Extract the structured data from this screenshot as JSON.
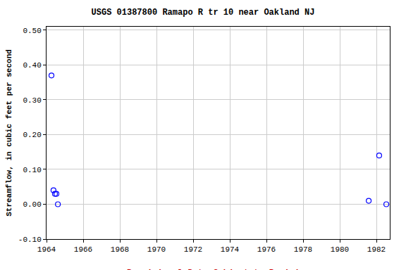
{
  "chart_data": {
    "type": "scatter",
    "title": "USGS 01387800 Ramapo R tr 10 near Oakland NJ",
    "y_label": "Streamflow, in cubic feet per second",
    "annotations": [
      "---- Provisional Data Subject to Revision ----"
    ],
    "x": [
      1964.27,
      1964.38,
      1964.46,
      1964.54,
      1964.62,
      1981.58,
      1982.15,
      1982.54
    ],
    "values": [
      0.37,
      0.04,
      0.03,
      0.03,
      0.0,
      0.01,
      0.14,
      0.0
    ],
    "color": "#0000ff",
    "marker": "circle-open",
    "xlim": [
      1964,
      1982.73
    ],
    "xticks": [
      1964,
      1966,
      1968,
      1970,
      1972,
      1974,
      1976,
      1978,
      1980,
      1982
    ],
    "ylim": [
      -0.1,
      0.51
    ],
    "yticks": [
      {
        "value": -0.1,
        "label": "-0.10"
      },
      {
        "value": 0.0,
        "label": "0.00"
      },
      {
        "value": 0.1,
        "label": "0.10"
      },
      {
        "value": 0.2,
        "label": "0.20"
      },
      {
        "value": 0.3,
        "label": "0.30"
      },
      {
        "value": 0.4,
        "label": "0.40"
      },
      {
        "value": 0.5,
        "label": "0.50"
      }
    ],
    "grid": true
  }
}
